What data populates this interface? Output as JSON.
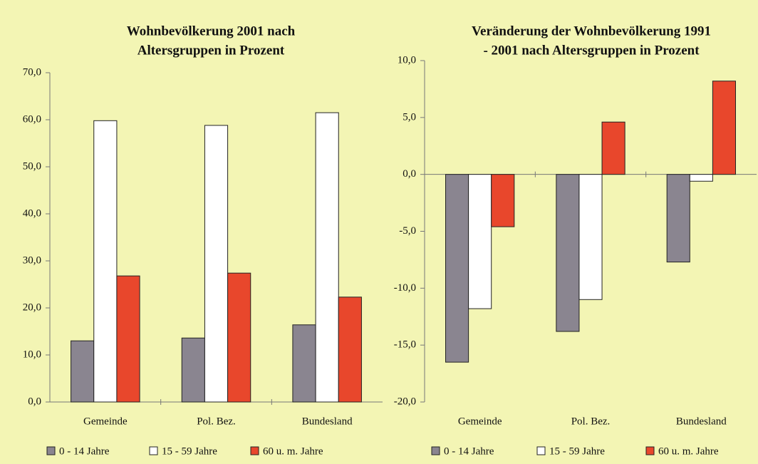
{
  "chart_data": [
    {
      "type": "bar",
      "title": [
        "Wohnbevölkerung 2001 nach",
        "Altersgruppen in Prozent"
      ],
      "categories": [
        "Gemeinde",
        "Pol. Bez.",
        "Bundesland"
      ],
      "series": [
        {
          "name": "0 - 14 Jahre",
          "color": "#8a8590",
          "values": [
            13.0,
            13.6,
            16.4
          ]
        },
        {
          "name": "15 - 59 Jahre",
          "color": "#ffffff",
          "values": [
            59.8,
            58.8,
            61.5
          ]
        },
        {
          "name": "60 u. m. Jahre",
          "color": "#e8472c",
          "values": [
            26.8,
            27.4,
            22.3
          ]
        }
      ],
      "ylim": [
        0,
        70
      ],
      "yticks": [
        {
          "value": 0,
          "label": "0,0"
        },
        {
          "value": 10,
          "label": "10,0"
        },
        {
          "value": 20,
          "label": "20,0"
        },
        {
          "value": 30,
          "label": "30,0"
        },
        {
          "value": 40,
          "label": "40,0"
        },
        {
          "value": 50,
          "label": "50,0"
        },
        {
          "value": 60,
          "label": "60,0"
        },
        {
          "value": 70,
          "label": "70,0"
        }
      ],
      "legend": "bottom"
    },
    {
      "type": "bar",
      "title": [
        "Veränderung der Wohnbevölkerung 1991",
        "- 2001 nach Altersgruppen in Prozent"
      ],
      "categories": [
        "Gemeinde",
        "Pol. Bez.",
        "Bundesland"
      ],
      "series": [
        {
          "name": "0 - 14 Jahre",
          "color": "#8a8590",
          "values": [
            -16.5,
            -13.8,
            -7.7
          ]
        },
        {
          "name": "15 - 59 Jahre",
          "color": "#ffffff",
          "values": [
            -11.8,
            -11.0,
            -0.6
          ]
        },
        {
          "name": "60 u. m. Jahre",
          "color": "#e8472c",
          "values": [
            -4.6,
            4.6,
            8.2
          ]
        }
      ],
      "ylim": [
        -20,
        10
      ],
      "yticks": [
        {
          "value": -20,
          "label": "-20,0"
        },
        {
          "value": -15,
          "label": "-15,0"
        },
        {
          "value": -10,
          "label": "-10,0"
        },
        {
          "value": -5,
          "label": "-5,0"
        },
        {
          "value": 0,
          "label": "0,0"
        },
        {
          "value": 5,
          "label": "5,0"
        },
        {
          "value": 10,
          "label": "10,0"
        }
      ],
      "legend": "bottom"
    }
  ]
}
